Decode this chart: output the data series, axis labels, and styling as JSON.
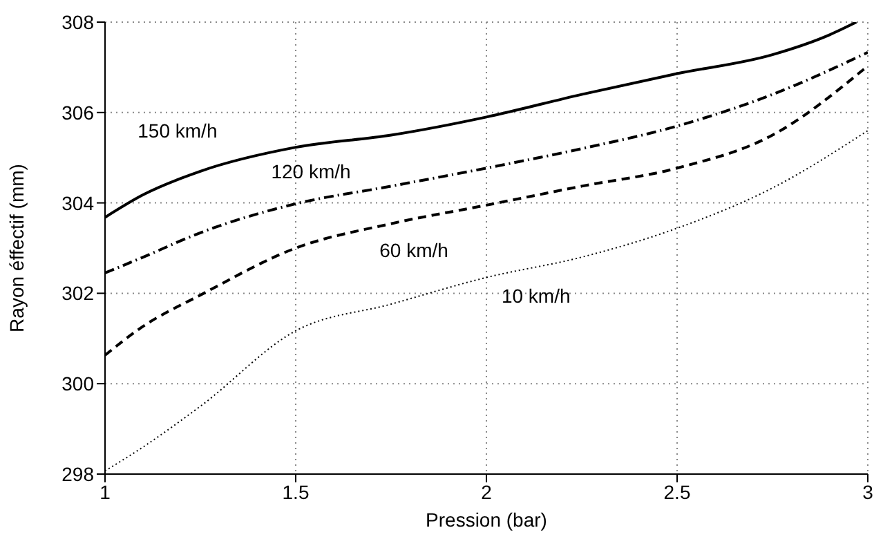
{
  "chart_data": {
    "type": "line",
    "xlabel": "Pression (bar)",
    "ylabel": "Rayon éffectif (mm)",
    "xlim": [
      1,
      3
    ],
    "xticks": [
      1,
      1.5,
      2,
      2.5,
      3
    ],
    "ylim": [
      298,
      308
    ],
    "yticks": [
      298,
      300,
      302,
      304,
      306,
      308
    ],
    "grid": true,
    "series": [
      {
        "name": "150 km/h",
        "color": "#000000",
        "line_style": "solid",
        "x": [
          1,
          1.1,
          1.25,
          1.5,
          1.75,
          2,
          2.25,
          2.5,
          2.75,
          2.9,
          2.97
        ],
        "values": [
          303.68,
          304.18,
          304.7,
          305.23,
          305.5,
          305.9,
          306.4,
          306.86,
          307.28,
          307.72,
          308
        ]
      },
      {
        "name": "120 km/h",
        "color": "#000000",
        "line_style": "dashdot",
        "x": [
          1,
          1.1,
          1.25,
          1.5,
          1.75,
          2,
          2.25,
          2.5,
          2.75,
          3
        ],
        "values": [
          302.45,
          302.8,
          303.34,
          303.98,
          304.37,
          304.77,
          305.2,
          305.7,
          306.4,
          307.33
        ]
      },
      {
        "name": "60 km/h",
        "color": "#000000",
        "line_style": "dashed",
        "x": [
          1,
          1.1,
          1.25,
          1.5,
          1.75,
          2,
          2.25,
          2.5,
          2.75,
          3
        ],
        "values": [
          300.63,
          301.27,
          301.96,
          303.0,
          303.54,
          303.95,
          304.37,
          304.77,
          305.5,
          307.03
        ]
      },
      {
        "name": "10 km/h",
        "color": "#000000",
        "line_style": "dotted",
        "x": [
          1,
          1.1,
          1.25,
          1.5,
          1.75,
          2,
          2.25,
          2.5,
          2.75,
          3
        ],
        "values": [
          298.07,
          298.6,
          299.5,
          301.17,
          301.76,
          302.35,
          302.8,
          303.44,
          304.33,
          305.6
        ]
      }
    ]
  }
}
